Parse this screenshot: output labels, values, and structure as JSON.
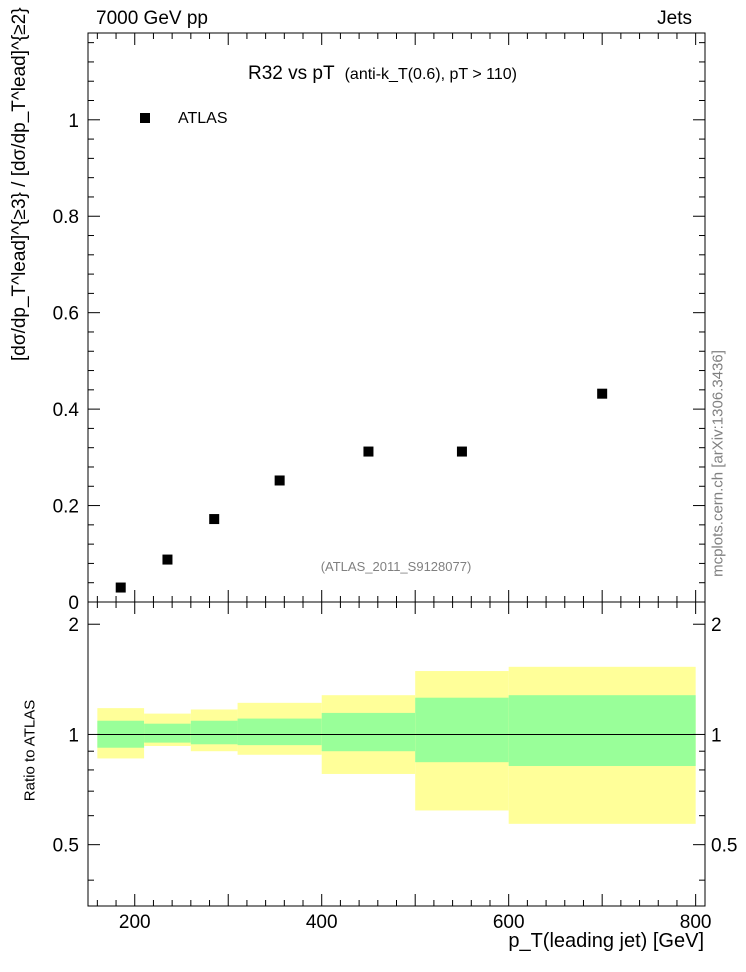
{
  "header": {
    "energy_label": "7000 GeV pp",
    "process_label": "Jets",
    "side_label": "mcplots.cern.ch [arXiv:1306.3436]"
  },
  "colors": {
    "band_outer": "#ffff99",
    "band_inner": "#99ff99",
    "marker": "#000000",
    "ref_text": "#808080"
  },
  "chart_data": [
    {
      "type": "scatter",
      "title": "R32 vs pT",
      "subtitle": "(anti-k_T(0.6), pT > 110)",
      "ylabel": "[dσ/dp_T^lead]^{≥3} / [dσ/dp_T^lead]^{≥2}",
      "reference_label": "(ATLAS_2011_S9128077)",
      "legend": {
        "entries": [
          "ATLAS"
        ],
        "position": "top-left"
      },
      "xlim": [
        150,
        810
      ],
      "ylim": [
        0,
        1.18
      ],
      "yticks": [
        "0",
        "0.2",
        "0.4",
        "0.6",
        "0.8",
        "1"
      ],
      "series": [
        {
          "name": "ATLAS",
          "x": [
            185,
            235,
            285,
            355,
            450,
            550,
            700
          ],
          "y": [
            0.03,
            0.088,
            0.172,
            0.252,
            0.312,
            0.312,
            0.432
          ]
        }
      ]
    },
    {
      "type": "area",
      "ylabel": "Ratio to ATLAS",
      "xlabel": "p_T(leading jet) [GeV]",
      "xlim": [
        150,
        810
      ],
      "ylim": [
        0.34,
        2.3
      ],
      "xticks": [
        "200",
        "400",
        "600",
        "800"
      ],
      "yticks": [
        "0.5",
        "1",
        "2"
      ],
      "reference_line": 1,
      "bins": [
        {
          "low": 160,
          "high": 210,
          "inner": [
            0.92,
            1.09
          ],
          "outer": [
            0.86,
            1.18
          ]
        },
        {
          "low": 210,
          "high": 260,
          "inner": [
            0.95,
            1.07
          ],
          "outer": [
            0.93,
            1.14
          ]
        },
        {
          "low": 260,
          "high": 310,
          "inner": [
            0.94,
            1.09
          ],
          "outer": [
            0.9,
            1.17
          ]
        },
        {
          "low": 310,
          "high": 400,
          "inner": [
            0.935,
            1.105
          ],
          "outer": [
            0.88,
            1.22
          ]
        },
        {
          "low": 400,
          "high": 500,
          "inner": [
            0.9,
            1.145
          ],
          "outer": [
            0.78,
            1.28
          ]
        },
        {
          "low": 500,
          "high": 600,
          "inner": [
            0.84,
            1.26
          ],
          "outer": [
            0.62,
            1.49
          ]
        },
        {
          "low": 600,
          "high": 800,
          "inner": [
            0.82,
            1.28
          ],
          "outer": [
            0.57,
            1.53
          ]
        }
      ]
    }
  ]
}
